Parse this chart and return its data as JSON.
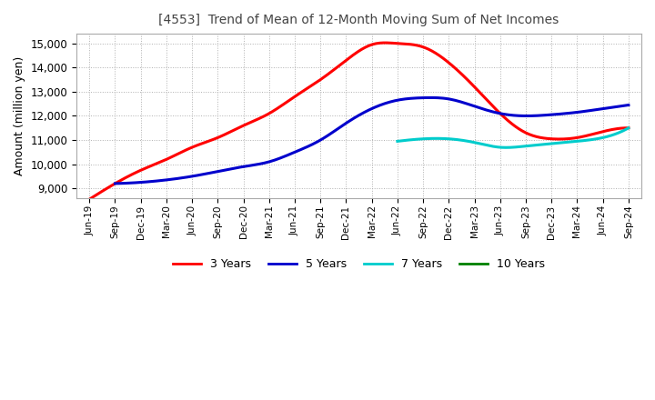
{
  "title": "[4553]  Trend of Mean of 12-Month Moving Sum of Net Incomes",
  "ylabel": "Amount (million yen)",
  "background_color": "#ffffff",
  "grid_color": "#b0b0b0",
  "ylim": [
    8600,
    15400
  ],
  "yticks": [
    9000,
    10000,
    11000,
    12000,
    13000,
    14000,
    15000
  ],
  "x_labels": [
    "Jun-19",
    "Sep-19",
    "Dec-19",
    "Mar-20",
    "Jun-20",
    "Sep-20",
    "Dec-20",
    "Mar-21",
    "Jun-21",
    "Sep-21",
    "Dec-21",
    "Mar-22",
    "Jun-22",
    "Sep-22",
    "Dec-22",
    "Mar-23",
    "Jun-23",
    "Sep-23",
    "Dec-23",
    "Mar-24",
    "Jun-24",
    "Sep-24"
  ],
  "series": {
    "3 Years": {
      "color": "#ff0000",
      "values": [
        8550,
        9200,
        9750,
        10200,
        10700,
        11100,
        11600,
        12100,
        12800,
        13500,
        14300,
        14950,
        15000,
        14850,
        14200,
        13200,
        12100,
        11300,
        11050,
        11100,
        11350,
        11500
      ]
    },
    "5 Years": {
      "color": "#0000cc",
      "values": [
        null,
        9200,
        9250,
        9350,
        9500,
        9700,
        9900,
        10100,
        10500,
        11000,
        11700,
        12300,
        12650,
        12750,
        12700,
        12400,
        12100,
        12000,
        12050,
        12150,
        12300,
        12450
      ]
    },
    "7 Years": {
      "color": "#00cccc",
      "values": [
        null,
        null,
        null,
        null,
        null,
        null,
        null,
        null,
        null,
        null,
        null,
        null,
        10950,
        11050,
        11050,
        10900,
        10700,
        10750,
        10850,
        10950,
        11100,
        11500
      ]
    },
    "10 Years": {
      "color": "#008000",
      "values": [
        null,
        null,
        null,
        null,
        null,
        null,
        null,
        null,
        null,
        null,
        null,
        null,
        null,
        null,
        null,
        null,
        null,
        null,
        null,
        null,
        null,
        null
      ]
    }
  },
  "legend_entries": [
    "3 Years",
    "5 Years",
    "7 Years",
    "10 Years"
  ],
  "legend_colors": [
    "#ff0000",
    "#0000cc",
    "#00cccc",
    "#008000"
  ]
}
